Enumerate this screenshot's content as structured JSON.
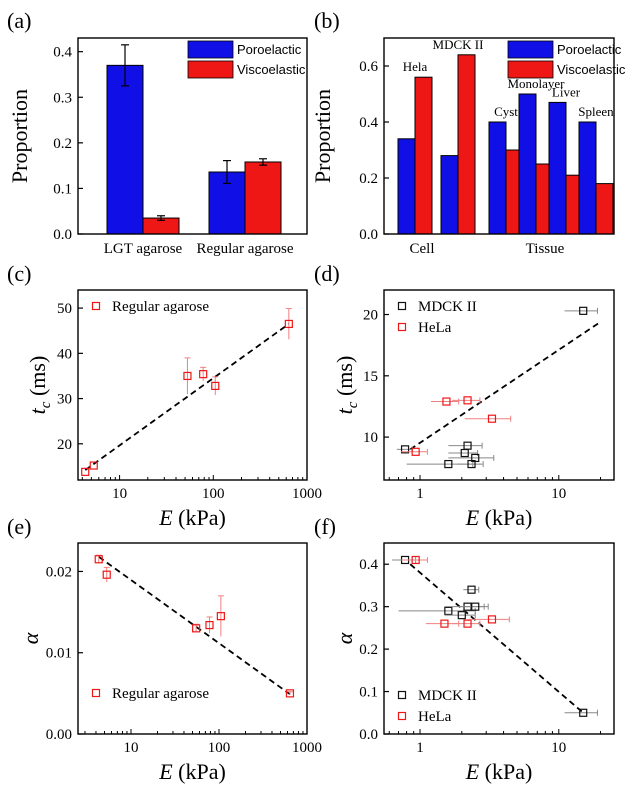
{
  "chart_data": [
    {
      "panel": "(a)",
      "type": "bar",
      "categories": [
        "LGT agarose",
        "Regular agarose"
      ],
      "series": [
        {
          "name": "Poroelactic",
          "values": [
            0.37,
            0.136
          ],
          "errors": [
            0.045,
            0.025
          ],
          "color": "#1010e6"
        },
        {
          "name": "Viscoelastic",
          "values": [
            0.035,
            0.158
          ],
          "errors": [
            0.005,
            0.007
          ],
          "color": "#ef1616"
        }
      ],
      "ylabel": "Proportion",
      "ylim": [
        0,
        0.43
      ],
      "yticks": [
        0.0,
        0.1,
        0.2,
        0.3,
        0.4
      ],
      "ytick_labels": [
        "0.0",
        "0.1",
        "0.2",
        "0.3",
        "0.4"
      ],
      "legend": "top-right"
    },
    {
      "panel": "(b)",
      "type": "bar",
      "groups": [
        "Cell",
        "Tissue"
      ],
      "categories": [
        "Hela",
        "MDCK II",
        "Cyst",
        "Monolayer",
        "Liver",
        "Spleen"
      ],
      "series": [
        {
          "name": "Poroelactic",
          "values": [
            0.34,
            0.28,
            0.4,
            0.5,
            0.47,
            0.4
          ],
          "color": "#1010e6"
        },
        {
          "name": "Viscoelastic",
          "values": [
            0.56,
            0.64,
            0.3,
            0.25,
            0.21,
            0.18
          ],
          "color": "#ef1616"
        }
      ],
      "ylabel": "Proportion",
      "ylim": [
        0,
        0.7
      ],
      "yticks": [
        0.0,
        0.2,
        0.4,
        0.6
      ],
      "ytick_labels": [
        "0.0",
        "0.2",
        "0.4",
        "0.6"
      ],
      "legend": "top-right"
    },
    {
      "panel": "(c)",
      "type": "scatter",
      "xscale": "log",
      "xlim": [
        3.6,
        1000
      ],
      "ylim": [
        12,
        54
      ],
      "xticks": [
        10,
        100,
        1000
      ],
      "xtick_labels": [
        "10",
        "100",
        "1000"
      ],
      "yticks": [
        20,
        30,
        40,
        50
      ],
      "ytick_labels": [
        "20",
        "30",
        "40",
        "50"
      ],
      "xlabel_sym": "E",
      "xlabel_unit": "(kPa)",
      "ylabel_sym": "t",
      "ylabel_sub": "c",
      "ylabel_unit": "(ms)",
      "series": [
        {
          "name": "Regular agarose",
          "color": "#ef1616",
          "points": [
            [
              4.3,
              13.8,
              0,
              0
            ],
            [
              5.3,
              15.2,
              0,
              0
            ],
            [
              53,
              35,
              0,
              4
            ],
            [
              78,
              35.4,
              0,
              1.5
            ],
            [
              105,
              32.8,
              0,
              2
            ],
            [
              640,
              46.5,
              0,
              3.4
            ]
          ]
        }
      ],
      "fit_line": [
        [
          4.3,
          14.2
        ],
        [
          640,
          46.5
        ]
      ],
      "legend": "top-left"
    },
    {
      "panel": "(d)",
      "type": "scatter",
      "xscale": "log",
      "xlim": [
        0.55,
        25
      ],
      "ylim": [
        6.5,
        22
      ],
      "xticks": [
        1,
        10
      ],
      "xtick_labels": [
        "1",
        "10"
      ],
      "yticks": [
        10,
        15,
        20
      ],
      "ytick_labels": [
        "10",
        "15",
        "20"
      ],
      "xlabel_sym": "E",
      "xlabel_unit": "(kPa)",
      "ylabel_sym": "t",
      "ylabel_sub": "c",
      "ylabel_unit": "(ms)",
      "series": [
        {
          "name": "MDCK II",
          "color": "#111111",
          "points": [
            [
              0.78,
              9.0,
              0.1,
              0
            ],
            [
              1.6,
              7.8,
              0.8,
              0
            ],
            [
              2.1,
              8.7,
              0.5,
              0
            ],
            [
              2.2,
              9.3,
              0.6,
              0
            ],
            [
              2.35,
              7.8,
              0.5,
              0
            ],
            [
              2.5,
              8.3,
              0.9,
              0
            ],
            [
              15,
              20.3,
              4,
              0
            ]
          ]
        },
        {
          "name": "HeLa",
          "color": "#ef1616",
          "points": [
            [
              0.93,
              8.8,
              0.2,
              0
            ],
            [
              1.55,
              12.9,
              0.35,
              0
            ],
            [
              2.2,
              13.0,
              0.5,
              0
            ],
            [
              3.3,
              11.5,
              1.2,
              0
            ]
          ]
        }
      ],
      "fit_line": [
        [
          0.85,
          9.0
        ],
        [
          20,
          19.4
        ]
      ],
      "legend": "top-left"
    },
    {
      "panel": "(e)",
      "type": "scatter",
      "xscale": "log",
      "xlim": [
        2.5,
        1000
      ],
      "ylim": [
        0,
        0.0235
      ],
      "xticks": [
        10,
        100,
        1000
      ],
      "xtick_labels": [
        "10",
        "100",
        "1000"
      ],
      "yticks": [
        0.0,
        0.01,
        0.02
      ],
      "ytick_labels": [
        "0.00",
        "0.01",
        "0.02"
      ],
      "xlabel_sym": "E",
      "xlabel_unit": "(kPa)",
      "ylabel_sym": "α",
      "series": [
        {
          "name": "Regular agarose",
          "color": "#ef1616",
          "points": [
            [
              4.3,
              0.0215,
              0,
              0.0005
            ],
            [
              5.3,
              0.0196,
              0,
              0.0009
            ],
            [
              55,
              0.013,
              0,
              0.0005
            ],
            [
              78,
              0.0134,
              0,
              0.001
            ],
            [
              105,
              0.0145,
              0,
              0.0025
            ],
            [
              640,
              0.005,
              0,
              0.0002
            ]
          ]
        }
      ],
      "fit_line": [
        [
          4.3,
          0.0218
        ],
        [
          640,
          0.0049
        ]
      ],
      "legend": "bottom-left"
    },
    {
      "panel": "(f)",
      "type": "scatter",
      "xscale": "log",
      "xlim": [
        0.55,
        25
      ],
      "ylim": [
        0,
        0.45
      ],
      "xticks": [
        1,
        10
      ],
      "xtick_labels": [
        "1",
        "10"
      ],
      "yticks": [
        0.0,
        0.1,
        0.2,
        0.3,
        0.4
      ],
      "ytick_labels": [
        "0.0",
        "0.1",
        "0.2",
        "0.3",
        "0.4"
      ],
      "xlabel_sym": "E",
      "xlabel_unit": "(kPa)",
      "ylabel_sym": "α",
      "series": [
        {
          "name": "MDCK II",
          "color": "#111111",
          "points": [
            [
              0.78,
              0.41,
              0.15,
              0
            ],
            [
              1.6,
              0.29,
              0.9,
              0
            ],
            [
              2.0,
              0.28,
              0.5,
              0
            ],
            [
              2.2,
              0.3,
              0.7,
              0
            ],
            [
              2.35,
              0.34,
              0.3,
              0
            ],
            [
              2.5,
              0.3,
              0.6,
              0
            ],
            [
              15,
              0.05,
              4,
              0
            ]
          ]
        },
        {
          "name": "HeLa",
          "color": "#ef1616",
          "points": [
            [
              0.93,
              0.41,
              0.2,
              0
            ],
            [
              1.5,
              0.26,
              0.4,
              0
            ],
            [
              2.2,
              0.26,
              0.5,
              0
            ],
            [
              3.3,
              0.27,
              1.1,
              0
            ]
          ]
        }
      ],
      "fit_line": [
        [
          0.85,
          0.4
        ],
        [
          15,
          0.05
        ]
      ],
      "legend": "bottom-left"
    }
  ]
}
